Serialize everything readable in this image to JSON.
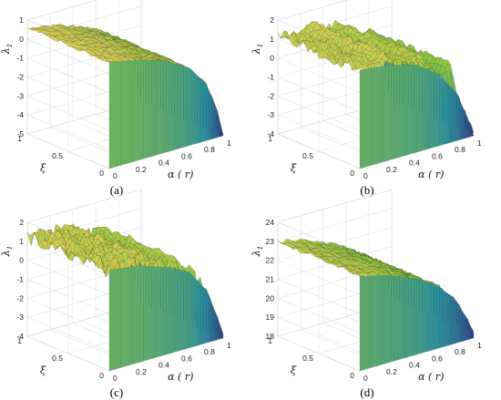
{
  "chart_data": [
    {
      "type": "surface",
      "panel_label": "(a)",
      "xlabel": "α ( r)",
      "ylabel": "ξ",
      "zlabel": "λ",
      "zlabel_sub": "1",
      "x_ticks": [
        "0",
        "0.2",
        "0.4",
        "0.6",
        "0.8",
        "1"
      ],
      "y_ticks": [
        "0",
        "0.5",
        "1"
      ],
      "z_ticks": [
        "1",
        "0",
        "-1",
        "-2",
        "-3",
        "-4",
        "-5"
      ],
      "xlim": [
        0,
        1
      ],
      "ylim": [
        0,
        1
      ],
      "zlim": [
        -5,
        1
      ],
      "grid": true,
      "surface": {
        "top_edge": [
          [
            0,
            0.6
          ],
          [
            0.25,
            0.3
          ],
          [
            0.5,
            -0.2
          ],
          [
            0.7,
            -0.9
          ],
          [
            0.85,
            -2.0
          ],
          [
            0.95,
            -3.6
          ],
          [
            1,
            -5.0
          ]
        ],
        "noise": 0.08,
        "ridges": []
      }
    },
    {
      "type": "surface",
      "panel_label": "(b)",
      "xlabel": "α ( r)",
      "ylabel": "ξ",
      "zlabel": "λ",
      "zlabel_sub": "1",
      "x_ticks": [
        "0",
        "0.2",
        "0.4",
        "0.6",
        "0.8",
        "1"
      ],
      "y_ticks": [
        "0",
        "0.5",
        "1"
      ],
      "z_ticks": [
        "2",
        "1",
        "0",
        "-1",
        "-2",
        "-3",
        "-4"
      ],
      "xlim": [
        0,
        1
      ],
      "ylim": [
        0,
        1
      ],
      "zlim": [
        -4,
        2
      ],
      "grid": true,
      "surface": {
        "top_edge": [
          [
            0,
            1.2
          ],
          [
            0.25,
            1.0
          ],
          [
            0.5,
            0.6
          ],
          [
            0.7,
            -0.3
          ],
          [
            0.85,
            -1.5
          ],
          [
            0.95,
            -3.0
          ],
          [
            1,
            -4.0
          ]
        ],
        "noise": 0.35,
        "ridges": [
          [
            0.2,
            0.35,
            1.9
          ],
          [
            0.45,
            0.6,
            1.5
          ],
          [
            0.72,
            0.85,
            1.0
          ]
        ]
      }
    },
    {
      "type": "surface",
      "panel_label": "(c)",
      "xlabel": "α ( r)",
      "ylabel": "ξ",
      "zlabel": "λ",
      "zlabel_sub": "1",
      "x_ticks": [
        "0",
        "0.2",
        "0.4",
        "0.6",
        "0.8",
        "1"
      ],
      "y_ticks": [
        "0",
        "0.5",
        "1"
      ],
      "z_ticks": [
        "2",
        "1",
        "0",
        "-1",
        "-2",
        "-3",
        "-4"
      ],
      "xlim": [
        0,
        1
      ],
      "ylim": [
        0,
        1
      ],
      "zlim": [
        -4,
        2
      ],
      "grid": true,
      "surface": {
        "top_edge": [
          [
            0,
            1.3
          ],
          [
            0.25,
            1.1
          ],
          [
            0.5,
            0.6
          ],
          [
            0.7,
            0.0
          ],
          [
            0.85,
            -1.2
          ],
          [
            0.95,
            -2.8
          ],
          [
            1,
            -3.8
          ]
        ],
        "noise": 0.45,
        "ridges": [
          [
            0.3,
            0.4,
            1.8
          ],
          [
            0.55,
            0.65,
            1.4
          ]
        ]
      }
    },
    {
      "type": "surface",
      "panel_label": "(d)",
      "xlabel": "α ( r)",
      "ylabel": "ξ",
      "zlabel": "λ",
      "zlabel_sub": "1",
      "x_ticks": [
        "0",
        "0.2",
        "0.4",
        "0.6",
        "0.8",
        "1"
      ],
      "y_ticks": [
        "0",
        "0.5",
        "1"
      ],
      "z_ticks": [
        "24",
        "23",
        "22",
        "21",
        "20",
        "19",
        "18"
      ],
      "xlim": [
        0,
        1
      ],
      "ylim": [
        0,
        1
      ],
      "zlim": [
        18,
        24
      ],
      "grid": true,
      "surface": {
        "top_edge": [
          [
            0,
            23.0
          ],
          [
            0.25,
            22.6
          ],
          [
            0.5,
            22.0
          ],
          [
            0.7,
            21.2
          ],
          [
            0.85,
            20.2
          ],
          [
            0.95,
            19.0
          ],
          [
            1,
            18.3
          ]
        ],
        "noise": 0.12,
        "ridges": []
      }
    }
  ],
  "colors": {
    "surface_high": "#f2d55b",
    "surface_mid": "#8cc63f",
    "surface_low": "#2a8f9c",
    "surface_floor": "#2e2d7f",
    "mesh": "#2b2b1a"
  }
}
